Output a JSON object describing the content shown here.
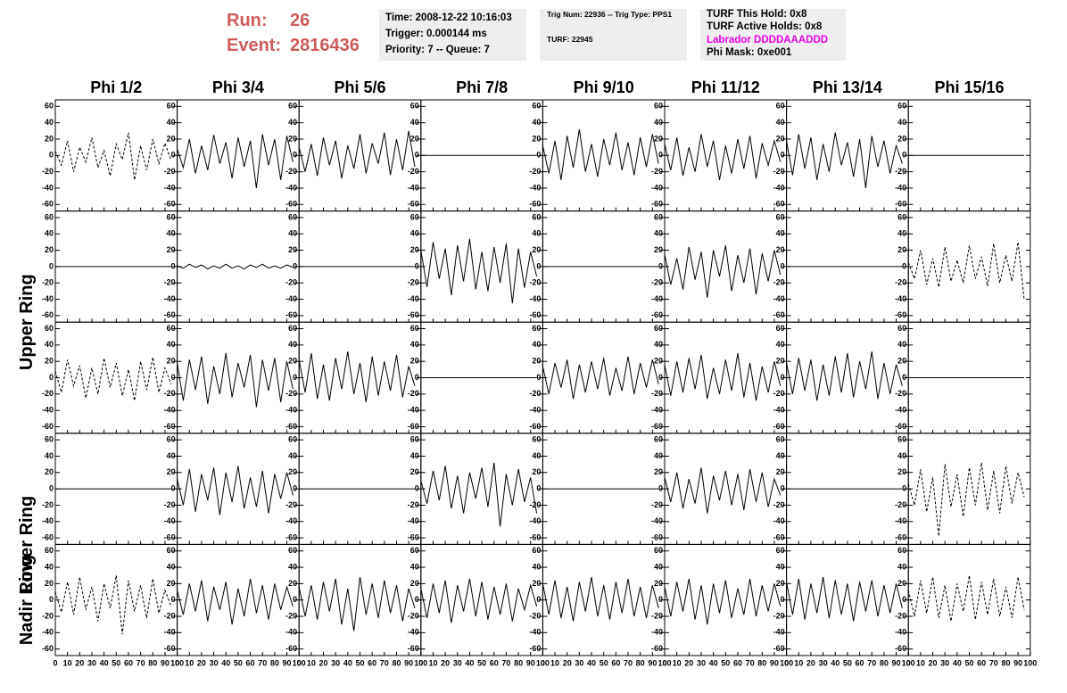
{
  "header": {
    "run_label": "Run:",
    "run": "26",
    "event_label": "Event:",
    "event": "2816436",
    "box1": [
      "Time: 2008-12-22 10:16:03",
      "Trigger: 0.000144 ms",
      "Priority: 7 -- Queue: 7"
    ],
    "box2": [
      "Trig Num: 22936 -- Trig Type: PPS1",
      "TURF: 22945"
    ],
    "box3": [
      "TURF This Hold: 0x8",
      "TURF Active Holds: 0x8",
      "Labrador DDDDAAADDD",
      "Phi Mask: 0xe001"
    ]
  },
  "columns": [
    "Phi 1/2",
    "Phi 3/4",
    "Phi 5/6",
    "Phi 7/8",
    "Phi 9/10",
    "Phi 11/12",
    "Phi 13/14",
    "Phi 15/16"
  ],
  "ring_labels": [
    "Upper Ring",
    "Lower Ring",
    "Nadir Ring"
  ],
  "axes": {
    "ylim": [
      -68,
      68
    ],
    "yticks": [
      -60,
      -40,
      -20,
      0,
      20,
      40,
      60
    ],
    "xlim": [
      0,
      100
    ],
    "xticks": [
      0,
      10,
      20,
      30,
      40,
      50,
      60,
      70,
      80,
      90,
      100
    ],
    "x": [
      0,
      5,
      10,
      15,
      20,
      25,
      30,
      35,
      40,
      45,
      50,
      55,
      60,
      65,
      70,
      75,
      80,
      85,
      90,
      95
    ]
  },
  "panels": [
    [
      {
        "dashed": true,
        "values": [
          5,
          -12,
          18,
          -20,
          10,
          -8,
          22,
          -15,
          6,
          -25,
          14,
          -5,
          28,
          -30,
          12,
          -18,
          20,
          -10,
          15,
          -6
        ]
      },
      {
        "values": [
          8,
          -15,
          20,
          -22,
          12,
          -18,
          25,
          -10,
          16,
          -28,
          22,
          -14,
          18,
          -40,
          26,
          -12,
          20,
          -30,
          24,
          -8
        ]
      },
      {
        "values": [
          10,
          -20,
          14,
          -25,
          22,
          -12,
          18,
          -28,
          12,
          -16,
          26,
          -22,
          15,
          -10,
          28,
          -24,
          20,
          -18,
          30,
          -14
        ]
      },
      {
        "values": [
          0,
          0,
          0,
          0,
          0,
          0,
          0,
          0,
          0,
          0,
          0,
          0,
          0,
          0,
          0,
          0,
          0,
          0,
          0,
          0
        ]
      },
      {
        "values": [
          12,
          -22,
          18,
          -30,
          24,
          -15,
          32,
          -20,
          14,
          -26,
          20,
          -12,
          28,
          -18,
          16,
          -24,
          22,
          -14,
          26,
          -10
        ]
      },
      {
        "values": [
          14,
          -18,
          22,
          -25,
          10,
          -20,
          26,
          -14,
          18,
          -30,
          12,
          -22,
          20,
          -16,
          24,
          -28,
          15,
          -12,
          18,
          -8
        ]
      },
      {
        "values": [
          18,
          -24,
          26,
          -16,
          22,
          -30,
          14,
          -20,
          28,
          -12,
          16,
          -26,
          20,
          -40,
          24,
          -14,
          18,
          -22,
          12,
          -10
        ]
      },
      {
        "values": [
          0,
          0,
          0,
          0,
          0,
          0,
          0,
          0,
          0,
          0,
          0,
          0,
          0,
          0,
          0,
          0,
          0,
          0,
          0,
          0
        ]
      }
    ],
    [
      {
        "values": [
          0,
          0,
          0,
          0,
          0,
          0,
          0,
          0,
          0,
          0,
          0,
          0,
          0,
          0,
          0,
          0,
          0,
          0,
          0,
          0
        ]
      },
      {
        "values": [
          1,
          -2,
          3,
          -1,
          2,
          -3,
          1,
          -2,
          3,
          -2,
          1,
          -3,
          2,
          -1,
          3,
          -2,
          1,
          -2,
          2,
          -1
        ]
      },
      {
        "values": [
          0,
          0,
          0,
          0,
          0,
          0,
          0,
          0,
          0,
          0,
          0,
          0,
          0,
          0,
          0,
          0,
          0,
          0,
          0,
          0
        ]
      },
      {
        "values": [
          20,
          -25,
          30,
          -15,
          22,
          -35,
          26,
          -18,
          34,
          -28,
          18,
          -30,
          24,
          -20,
          28,
          -45,
          22,
          -26,
          18,
          -12
        ]
      },
      {
        "values": [
          0,
          0,
          0,
          0,
          0,
          0,
          0,
          0,
          0,
          0,
          0,
          0,
          0,
          0,
          0,
          0,
          0,
          0,
          0,
          0
        ]
      },
      {
        "values": [
          15,
          -22,
          10,
          -28,
          24,
          -16,
          18,
          -38,
          20,
          -12,
          26,
          -30,
          14,
          -20,
          22,
          -34,
          16,
          -18,
          20,
          -10
        ]
      },
      {
        "values": [
          0,
          0,
          0,
          0,
          0,
          0,
          0,
          0,
          0,
          0,
          0,
          0,
          0,
          0,
          0,
          0,
          0,
          0,
          0,
          0
        ]
      },
      {
        "dashed": true,
        "values": [
          5,
          -15,
          20,
          -22,
          10,
          -25,
          24,
          -18,
          8,
          -20,
          26,
          -15,
          12,
          -24,
          28,
          -20,
          14,
          -18,
          30,
          -40
        ]
      }
    ],
    [
      {
        "dashed": true,
        "values": [
          8,
          -18,
          22,
          -10,
          15,
          -25,
          12,
          -20,
          24,
          -12,
          18,
          -22,
          10,
          -28,
          20,
          -15,
          25,
          -18,
          12,
          -8
        ]
      },
      {
        "values": [
          18,
          -28,
          22,
          -15,
          26,
          -32,
          14,
          -20,
          30,
          -24,
          18,
          -12,
          28,
          -36,
          22,
          -16,
          24,
          -30,
          20,
          -14
        ]
      },
      {
        "values": [
          22,
          -18,
          30,
          -26,
          16,
          -28,
          24,
          -14,
          32,
          -20,
          18,
          -30,
          26,
          -22,
          20,
          -16,
          28,
          -24,
          14,
          -10
        ]
      },
      {
        "values": [
          0,
          0,
          0,
          0,
          0,
          0,
          0,
          0,
          0,
          0,
          0,
          0,
          0,
          0,
          0,
          0,
          0,
          0,
          0,
          0
        ]
      },
      {
        "values": [
          14,
          -20,
          18,
          -12,
          22,
          -26,
          16,
          -18,
          20,
          -14,
          24,
          -22,
          12,
          -16,
          26,
          -20,
          18,
          -12,
          22,
          -8
        ]
      },
      {
        "values": [
          16,
          -22,
          20,
          -18,
          24,
          -14,
          28,
          -26,
          12,
          -20,
          22,
          -16,
          30,
          -24,
          18,
          -28,
          14,
          -18,
          20,
          -10
        ]
      },
      {
        "values": [
          18,
          -20,
          24,
          -16,
          22,
          -28,
          16,
          -22,
          26,
          -18,
          30,
          -24,
          20,
          -14,
          32,
          -26,
          18,
          -20,
          16,
          -10
        ]
      },
      {
        "values": [
          0,
          0,
          0,
          0,
          0,
          0,
          0,
          0,
          0,
          0,
          0,
          0,
          0,
          0,
          0,
          0,
          0,
          0,
          0,
          0
        ]
      }
    ],
    [
      {
        "values": [
          0,
          0,
          0,
          0,
          0,
          0,
          0,
          0,
          0,
          0,
          0,
          0,
          0,
          0,
          0,
          0,
          0,
          0,
          0,
          0
        ]
      },
      {
        "values": [
          12,
          -20,
          24,
          -28,
          18,
          -14,
          26,
          -32,
          20,
          -16,
          28,
          -24,
          14,
          -22,
          22,
          -30,
          18,
          -12,
          20,
          -8
        ]
      },
      {
        "values": [
          0,
          0,
          0,
          0,
          0,
          0,
          0,
          0,
          0,
          0,
          0,
          0,
          0,
          0,
          0,
          0,
          0,
          0,
          0,
          0
        ]
      },
      {
        "values": [
          10,
          -18,
          22,
          -14,
          28,
          -24,
          16,
          -30,
          20,
          -12,
          26,
          -22,
          32,
          -46,
          18,
          -20,
          24,
          -16,
          14,
          -30
        ]
      },
      {
        "values": [
          0,
          0,
          0,
          0,
          0,
          0,
          0,
          0,
          0,
          0,
          0,
          0,
          0,
          0,
          0,
          0,
          0,
          0,
          0,
          0
        ]
      },
      {
        "values": [
          14,
          -16,
          20,
          -24,
          12,
          -18,
          26,
          -30,
          16,
          -14,
          22,
          -20,
          18,
          -26,
          24,
          -16,
          20,
          -22,
          12,
          -8
        ]
      },
      {
        "values": [
          0,
          0,
          0,
          0,
          0,
          0,
          0,
          0,
          0,
          0,
          0,
          0,
          0,
          0,
          0,
          0,
          0,
          0,
          0,
          0
        ]
      },
      {
        "dashed": true,
        "values": [
          6,
          -20,
          24,
          -28,
          14,
          -58,
          30,
          -22,
          18,
          -34,
          26,
          -20,
          32,
          -26,
          22,
          -30,
          28,
          -18,
          20,
          -10
        ]
      }
    ],
    [
      {
        "dashed": true,
        "values": [
          10,
          -15,
          22,
          -18,
          28,
          -12,
          16,
          -26,
          20,
          -10,
          30,
          -42,
          24,
          -14,
          18,
          -22,
          26,
          -16,
          12,
          -8
        ]
      },
      {
        "values": [
          12,
          -18,
          20,
          -14,
          24,
          -26,
          16,
          -12,
          22,
          -30,
          14,
          -20,
          26,
          -16,
          18,
          -24,
          20,
          -12,
          16,
          -8
        ]
      },
      {
        "values": [
          16,
          -20,
          18,
          -24,
          22,
          -14,
          26,
          -30,
          14,
          -38,
          28,
          -18,
          20,
          -22,
          24,
          -16,
          18,
          -26,
          14,
          -10
        ]
      },
      {
        "values": [
          14,
          -22,
          20,
          -16,
          24,
          -28,
          18,
          -14,
          26,
          -20,
          22,
          -24,
          16,
          -18,
          20,
          -26,
          14,
          -12,
          18,
          -8
        ]
      },
      {
        "values": [
          20,
          -18,
          24,
          -22,
          16,
          -26,
          22,
          -14,
          28,
          -20,
          18,
          -24,
          22,
          -16,
          26,
          -20,
          16,
          -22,
          18,
          -10
        ]
      },
      {
        "values": [
          16,
          -20,
          22,
          -14,
          26,
          -24,
          18,
          -30,
          20,
          -16,
          24,
          -22,
          14,
          -18,
          26,
          -20,
          18,
          -14,
          20,
          -8
        ]
      },
      {
        "values": [
          22,
          -18,
          26,
          -24,
          20,
          -16,
          28,
          -22,
          24,
          -18,
          20,
          -26,
          22,
          -14,
          24,
          -20,
          18,
          -16,
          20,
          -10
        ]
      },
      {
        "dashed": true,
        "values": [
          12,
          -20,
          24,
          -16,
          28,
          -22,
          18,
          -26,
          20,
          -14,
          30,
          -24,
          22,
          -18,
          26,
          -20,
          16,
          -22,
          28,
          -12
        ]
      }
    ]
  ]
}
